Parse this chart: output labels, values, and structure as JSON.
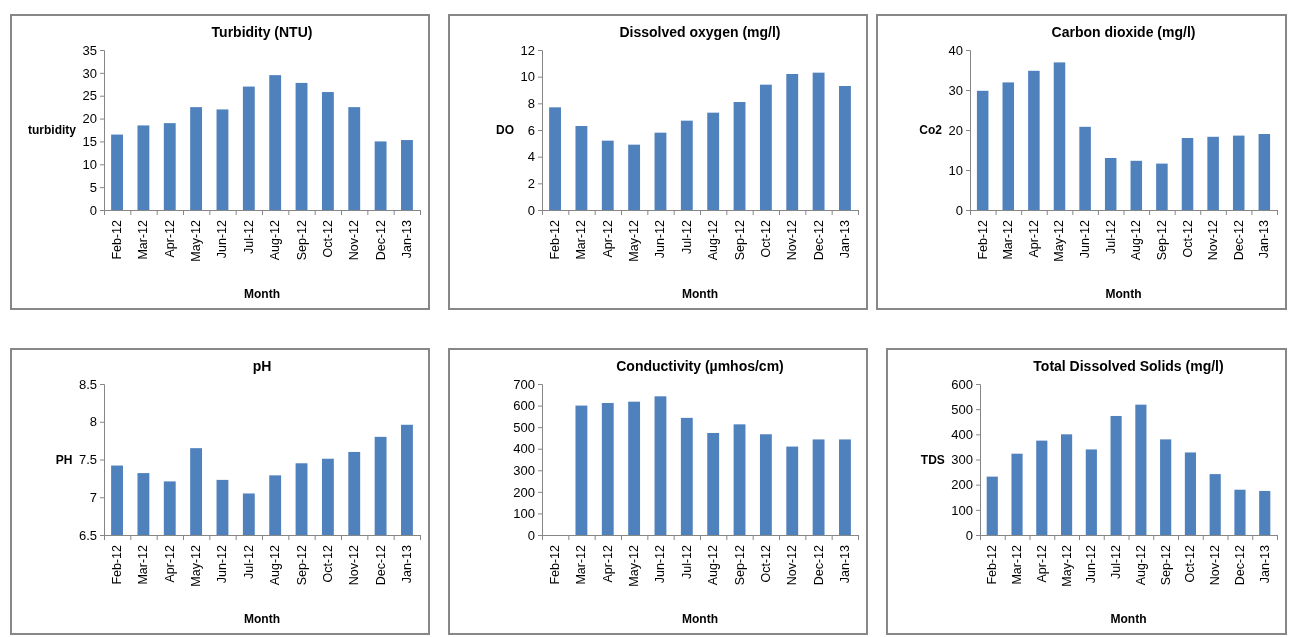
{
  "chart_data": [
    {
      "type": "bar",
      "title": "Turbidity (NTU)",
      "xlabel": "Month",
      "ylabel": "turbidity",
      "categories": [
        "Feb-12",
        "Mar-12",
        "Apr-12",
        "May-12",
        "Jun-12",
        "Jul-12",
        "Aug-12",
        "Sep-12",
        "Oct-12",
        "Nov-12",
        "Dec-12",
        "Jan-13"
      ],
      "values": [
        16.5,
        18.5,
        19,
        22.5,
        22,
        27,
        29.5,
        27.8,
        25.8,
        22.5,
        15,
        15.3
      ],
      "color": "#4f81bd",
      "ylim": [
        0,
        35
      ],
      "yticks": [
        0,
        5,
        10,
        15,
        20,
        25,
        30,
        35
      ]
    },
    {
      "type": "bar",
      "title": "Dissolved oxygen  (mg/l)",
      "xlabel": "Month",
      "ylabel": "DO",
      "categories": [
        "Feb-12",
        "Mar-12",
        "Apr-12",
        "May-12",
        "Jun-12",
        "Jul-12",
        "Aug-12",
        "Sep-12",
        "Oct-12",
        "Nov-12",
        "Dec-12",
        "Jan-13"
      ],
      "values": [
        7.7,
        6.3,
        5.2,
        4.9,
        5.8,
        6.7,
        7.3,
        8.1,
        9.4,
        10.2,
        10.3,
        9.3
      ],
      "color": "#4f81bd",
      "ylim": [
        0,
        12
      ],
      "yticks": [
        0,
        2,
        4,
        6,
        8,
        10,
        12
      ]
    },
    {
      "type": "bar",
      "title": "Carbon dioxide  (mg/l)",
      "xlabel": "Month",
      "ylabel": "Co2",
      "categories": [
        "Feb-12",
        "Mar-12",
        "Apr-12",
        "May-12",
        "Jun-12",
        "Jul-12",
        "Aug-12",
        "Sep-12",
        "Oct-12",
        "Nov-12",
        "Dec-12",
        "Jan-13"
      ],
      "values": [
        29.8,
        31.9,
        34.8,
        36.9,
        20.8,
        13,
        12.3,
        11.6,
        18,
        18.3,
        18.6,
        19
      ],
      "color": "#4f81bd",
      "ylim": [
        0,
        40
      ],
      "yticks": [
        0,
        10,
        20,
        30,
        40
      ]
    },
    {
      "type": "bar",
      "title": "pH",
      "xlabel": "Month",
      "ylabel": "PH",
      "categories": [
        "Feb-12",
        "Mar-12",
        "Apr-12",
        "May-12",
        "Jun-12",
        "Jul-12",
        "Aug-12",
        "Sep-12",
        "Oct-12",
        "Nov-12",
        "Dec-12",
        "Jan-13"
      ],
      "values": [
        7.42,
        7.32,
        7.21,
        7.65,
        7.23,
        7.05,
        7.29,
        7.45,
        7.51,
        7.6,
        7.8,
        7.96
      ],
      "color": "#4f81bd",
      "ylim": [
        6.5,
        8.5
      ],
      "yticks": [
        6.5,
        7,
        7.5,
        8,
        8.5
      ]
    },
    {
      "type": "bar",
      "title": "Conductivity (µmhos/cm)",
      "xlabel": "Month",
      "categories": [
        "Feb-12",
        "Mar-12",
        "Apr-12",
        "May-12",
        "Jun-12",
        "Jul-12",
        "Aug-12",
        "Sep-12",
        "Oct-12",
        "Nov-12",
        "Dec-12",
        "Jan-13"
      ],
      "values": [
        null,
        600,
        612,
        618,
        643,
        543,
        473,
        513,
        467,
        410,
        443,
        443
      ],
      "color": "#4f81bd",
      "ylim": [
        0,
        700
      ],
      "yticks": [
        0,
        100,
        200,
        300,
        400,
        500,
        600,
        700
      ]
    },
    {
      "type": "bar",
      "title": "Total Dissolved Solids (mg/l)",
      "xlabel": "Month",
      "ylabel": "TDS",
      "categories": [
        "Feb-12",
        "Mar-12",
        "Apr-12",
        "May-12",
        "Jun-12",
        "Jul-12",
        "Aug-12",
        "Sep-12",
        "Oct-12",
        "Nov-12",
        "Dec-12",
        "Jan-13"
      ],
      "values": [
        232,
        323,
        375,
        400,
        340,
        473,
        518,
        380,
        328,
        242,
        180,
        175
      ],
      "color": "#4f81bd",
      "ylim": [
        0,
        600
      ],
      "yticks": [
        0,
        100,
        200,
        300,
        400,
        500,
        600
      ]
    }
  ]
}
